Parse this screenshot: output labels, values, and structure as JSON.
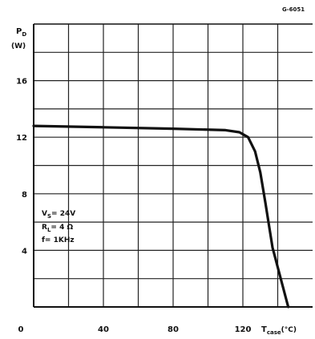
{
  "figure_code": "G-6051",
  "chart_data": {
    "type": "line",
    "y_axis": {
      "symbol": "P",
      "subscript": "D",
      "unit": "(W)",
      "lim": [
        0,
        20
      ]
    },
    "x_axis": {
      "symbol": "T",
      "subscript": "case",
      "unit": "(°C)",
      "lim": [
        0,
        160
      ]
    },
    "x_tick_labels": [
      {
        "value": 0,
        "label": "0"
      },
      {
        "value": 40,
        "label": "40"
      },
      {
        "value": 80,
        "label": "80"
      },
      {
        "value": 120,
        "label": "120"
      }
    ],
    "y_tick_labels": [
      {
        "value": 4,
        "label": "4"
      },
      {
        "value": 8,
        "label": "8"
      },
      {
        "value": 12,
        "label": "12"
      },
      {
        "value": 16,
        "label": "16"
      }
    ],
    "grid": {
      "on": true,
      "x_step": 20,
      "y_step": 2
    },
    "conditions": [
      {
        "symbol": "V",
        "subscript": "S",
        "value": "= 24V"
      },
      {
        "symbol": "R",
        "subscript": "L",
        "value": "= 4 Ω"
      },
      {
        "symbol": "f",
        "subscript": "",
        "value": "= 1KHz"
      }
    ],
    "series": [
      {
        "color": "#111111",
        "points": [
          [
            0,
            12.8
          ],
          [
            40,
            12.7
          ],
          [
            80,
            12.6
          ],
          [
            110,
            12.5
          ],
          [
            118,
            12.35
          ],
          [
            123,
            12.0
          ],
          [
            127,
            11.0
          ],
          [
            130,
            9.5
          ],
          [
            133,
            7.3
          ],
          [
            137,
            4.2
          ],
          [
            146,
            0.0
          ]
        ]
      }
    ]
  }
}
